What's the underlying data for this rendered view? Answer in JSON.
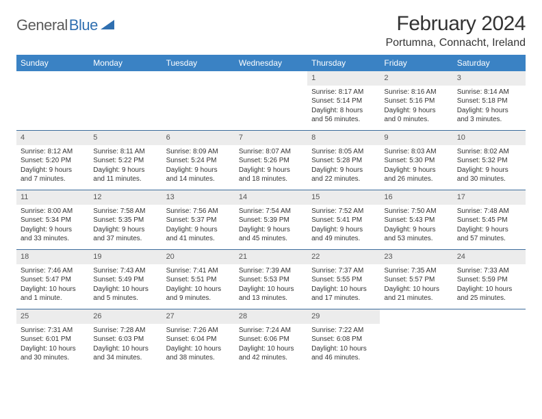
{
  "logo": {
    "part1": "General",
    "part2": "Blue"
  },
  "title": "February 2024",
  "location": "Portumna, Connacht, Ireland",
  "colors": {
    "header_bg": "#3a82c4",
    "header_text": "#ffffff",
    "week_border": "#3a6a9a",
    "daynum_bg": "#ececec",
    "daynum_text": "#555555",
    "body_text": "#333333",
    "logo_gray": "#5a5a5a",
    "logo_blue": "#2f6fb0"
  },
  "day_labels": [
    "Sunday",
    "Monday",
    "Tuesday",
    "Wednesday",
    "Thursday",
    "Friday",
    "Saturday"
  ],
  "weeks": [
    [
      {
        "empty": true
      },
      {
        "empty": true
      },
      {
        "empty": true
      },
      {
        "empty": true
      },
      {
        "n": "1",
        "sr": "Sunrise: 8:17 AM",
        "ss": "Sunset: 5:14 PM",
        "d1": "Daylight: 8 hours",
        "d2": "and 56 minutes."
      },
      {
        "n": "2",
        "sr": "Sunrise: 8:16 AM",
        "ss": "Sunset: 5:16 PM",
        "d1": "Daylight: 9 hours",
        "d2": "and 0 minutes."
      },
      {
        "n": "3",
        "sr": "Sunrise: 8:14 AM",
        "ss": "Sunset: 5:18 PM",
        "d1": "Daylight: 9 hours",
        "d2": "and 3 minutes."
      }
    ],
    [
      {
        "n": "4",
        "sr": "Sunrise: 8:12 AM",
        "ss": "Sunset: 5:20 PM",
        "d1": "Daylight: 9 hours",
        "d2": "and 7 minutes."
      },
      {
        "n": "5",
        "sr": "Sunrise: 8:11 AM",
        "ss": "Sunset: 5:22 PM",
        "d1": "Daylight: 9 hours",
        "d2": "and 11 minutes."
      },
      {
        "n": "6",
        "sr": "Sunrise: 8:09 AM",
        "ss": "Sunset: 5:24 PM",
        "d1": "Daylight: 9 hours",
        "d2": "and 14 minutes."
      },
      {
        "n": "7",
        "sr": "Sunrise: 8:07 AM",
        "ss": "Sunset: 5:26 PM",
        "d1": "Daylight: 9 hours",
        "d2": "and 18 minutes."
      },
      {
        "n": "8",
        "sr": "Sunrise: 8:05 AM",
        "ss": "Sunset: 5:28 PM",
        "d1": "Daylight: 9 hours",
        "d2": "and 22 minutes."
      },
      {
        "n": "9",
        "sr": "Sunrise: 8:03 AM",
        "ss": "Sunset: 5:30 PM",
        "d1": "Daylight: 9 hours",
        "d2": "and 26 minutes."
      },
      {
        "n": "10",
        "sr": "Sunrise: 8:02 AM",
        "ss": "Sunset: 5:32 PM",
        "d1": "Daylight: 9 hours",
        "d2": "and 30 minutes."
      }
    ],
    [
      {
        "n": "11",
        "sr": "Sunrise: 8:00 AM",
        "ss": "Sunset: 5:34 PM",
        "d1": "Daylight: 9 hours",
        "d2": "and 33 minutes."
      },
      {
        "n": "12",
        "sr": "Sunrise: 7:58 AM",
        "ss": "Sunset: 5:35 PM",
        "d1": "Daylight: 9 hours",
        "d2": "and 37 minutes."
      },
      {
        "n": "13",
        "sr": "Sunrise: 7:56 AM",
        "ss": "Sunset: 5:37 PM",
        "d1": "Daylight: 9 hours",
        "d2": "and 41 minutes."
      },
      {
        "n": "14",
        "sr": "Sunrise: 7:54 AM",
        "ss": "Sunset: 5:39 PM",
        "d1": "Daylight: 9 hours",
        "d2": "and 45 minutes."
      },
      {
        "n": "15",
        "sr": "Sunrise: 7:52 AM",
        "ss": "Sunset: 5:41 PM",
        "d1": "Daylight: 9 hours",
        "d2": "and 49 minutes."
      },
      {
        "n": "16",
        "sr": "Sunrise: 7:50 AM",
        "ss": "Sunset: 5:43 PM",
        "d1": "Daylight: 9 hours",
        "d2": "and 53 minutes."
      },
      {
        "n": "17",
        "sr": "Sunrise: 7:48 AM",
        "ss": "Sunset: 5:45 PM",
        "d1": "Daylight: 9 hours",
        "d2": "and 57 minutes."
      }
    ],
    [
      {
        "n": "18",
        "sr": "Sunrise: 7:46 AM",
        "ss": "Sunset: 5:47 PM",
        "d1": "Daylight: 10 hours",
        "d2": "and 1 minute."
      },
      {
        "n": "19",
        "sr": "Sunrise: 7:43 AM",
        "ss": "Sunset: 5:49 PM",
        "d1": "Daylight: 10 hours",
        "d2": "and 5 minutes."
      },
      {
        "n": "20",
        "sr": "Sunrise: 7:41 AM",
        "ss": "Sunset: 5:51 PM",
        "d1": "Daylight: 10 hours",
        "d2": "and 9 minutes."
      },
      {
        "n": "21",
        "sr": "Sunrise: 7:39 AM",
        "ss": "Sunset: 5:53 PM",
        "d1": "Daylight: 10 hours",
        "d2": "and 13 minutes."
      },
      {
        "n": "22",
        "sr": "Sunrise: 7:37 AM",
        "ss": "Sunset: 5:55 PM",
        "d1": "Daylight: 10 hours",
        "d2": "and 17 minutes."
      },
      {
        "n": "23",
        "sr": "Sunrise: 7:35 AM",
        "ss": "Sunset: 5:57 PM",
        "d1": "Daylight: 10 hours",
        "d2": "and 21 minutes."
      },
      {
        "n": "24",
        "sr": "Sunrise: 7:33 AM",
        "ss": "Sunset: 5:59 PM",
        "d1": "Daylight: 10 hours",
        "d2": "and 25 minutes."
      }
    ],
    [
      {
        "n": "25",
        "sr": "Sunrise: 7:31 AM",
        "ss": "Sunset: 6:01 PM",
        "d1": "Daylight: 10 hours",
        "d2": "and 30 minutes."
      },
      {
        "n": "26",
        "sr": "Sunrise: 7:28 AM",
        "ss": "Sunset: 6:03 PM",
        "d1": "Daylight: 10 hours",
        "d2": "and 34 minutes."
      },
      {
        "n": "27",
        "sr": "Sunrise: 7:26 AM",
        "ss": "Sunset: 6:04 PM",
        "d1": "Daylight: 10 hours",
        "d2": "and 38 minutes."
      },
      {
        "n": "28",
        "sr": "Sunrise: 7:24 AM",
        "ss": "Sunset: 6:06 PM",
        "d1": "Daylight: 10 hours",
        "d2": "and 42 minutes."
      },
      {
        "n": "29",
        "sr": "Sunrise: 7:22 AM",
        "ss": "Sunset: 6:08 PM",
        "d1": "Daylight: 10 hours",
        "d2": "and 46 minutes."
      },
      {
        "empty": true
      },
      {
        "empty": true
      }
    ]
  ]
}
